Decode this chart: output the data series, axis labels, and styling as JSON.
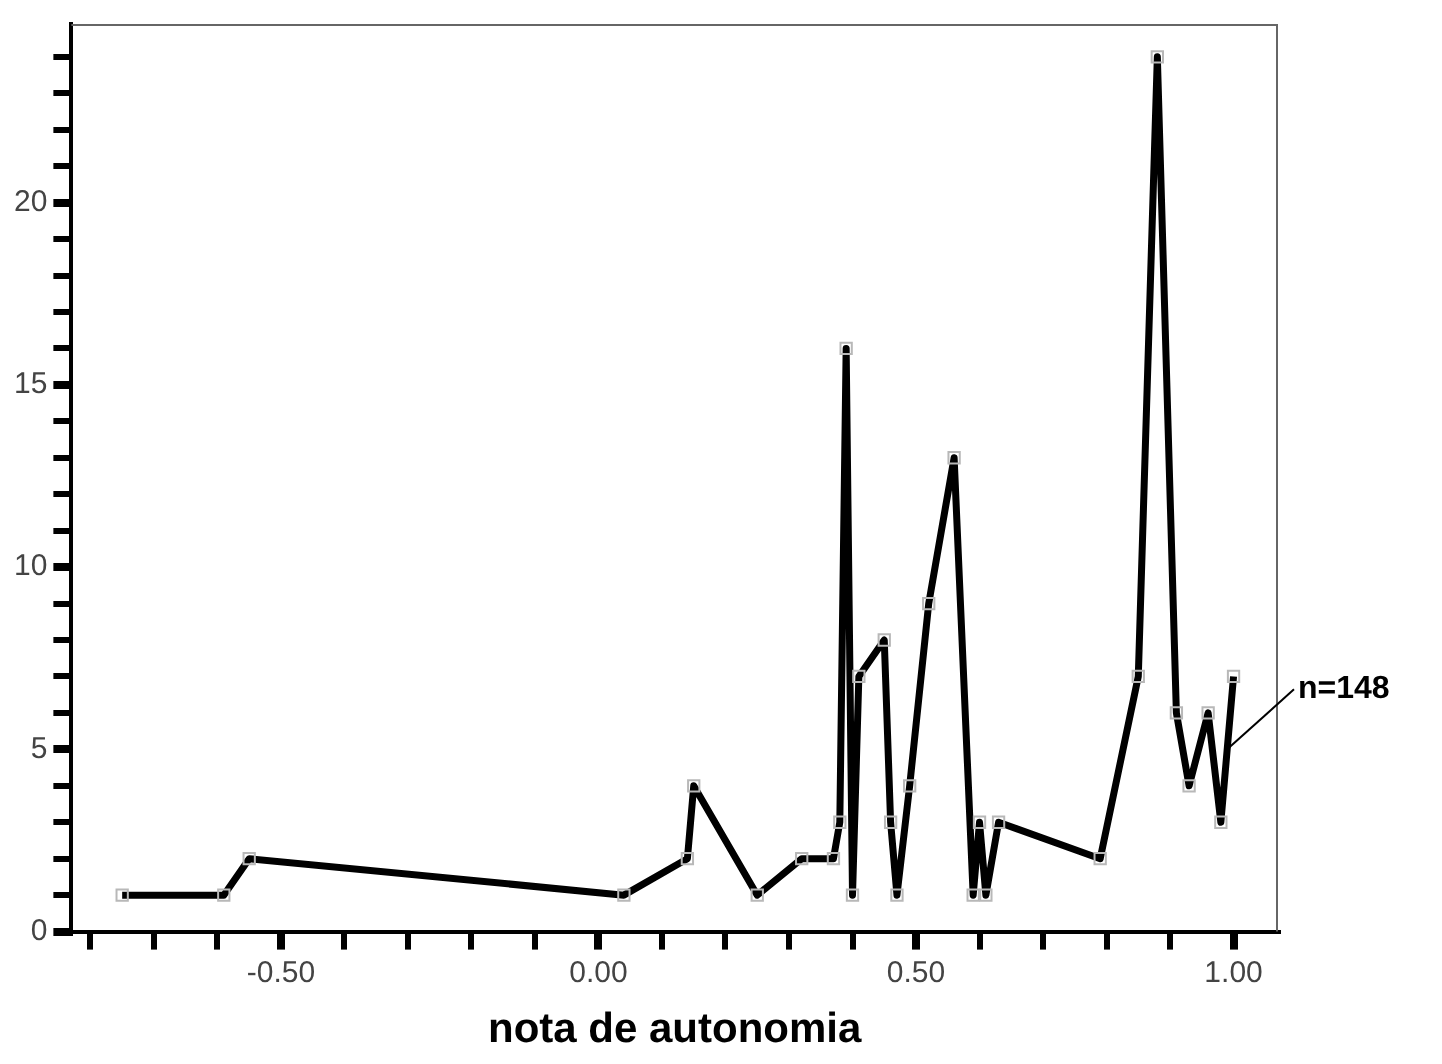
{
  "chart_data": {
    "type": "line",
    "xlabel": "nota de autonomia",
    "x": [
      -0.75,
      -0.59,
      -0.55,
      0.04,
      0.14,
      0.15,
      0.25,
      0.32,
      0.37,
      0.38,
      0.39,
      0.4,
      0.41,
      0.45,
      0.46,
      0.47,
      0.49,
      0.52,
      0.56,
      0.59,
      0.6,
      0.61,
      0.63,
      0.79,
      0.85,
      0.88,
      0.91,
      0.93,
      0.96,
      0.98,
      1.0
    ],
    "series": [
      {
        "color": "#000000",
        "values": [
          1,
          1,
          2,
          1,
          2,
          4,
          1,
          2,
          2,
          3,
          16,
          1,
          7,
          8,
          3,
          1,
          4,
          9,
          13,
          1,
          3,
          1,
          3,
          2,
          7,
          24,
          6,
          4,
          6,
          3,
          7
        ]
      }
    ],
    "xlim": [
      -0.83,
      1.07
    ],
    "ylim": [
      0,
      24.9
    ],
    "xticks": [
      {
        "value": -0.8,
        "label": null
      },
      {
        "value": -0.7,
        "label": null
      },
      {
        "value": -0.6,
        "label": null
      },
      {
        "value": -0.5,
        "label": "-0.50"
      },
      {
        "value": -0.4,
        "label": null
      },
      {
        "value": -0.3,
        "label": null
      },
      {
        "value": -0.2,
        "label": null
      },
      {
        "value": -0.1,
        "label": null
      },
      {
        "value": 0,
        "label": "0.00"
      },
      {
        "value": 0.1,
        "label": null
      },
      {
        "value": 0.2,
        "label": null
      },
      {
        "value": 0.3,
        "label": null
      },
      {
        "value": 0.4,
        "label": null
      },
      {
        "value": 0.5,
        "label": "0.50"
      },
      {
        "value": 0.6,
        "label": null
      },
      {
        "value": 0.7,
        "label": null
      },
      {
        "value": 0.8,
        "label": null
      },
      {
        "value": 0.9,
        "label": null
      },
      {
        "value": 1,
        "label": "1.00"
      }
    ],
    "yticks": [
      0,
      {
        "value": 1,
        "label": null
      },
      {
        "value": 2,
        "label": null
      },
      {
        "value": 3,
        "label": null
      },
      {
        "value": 4,
        "label": null
      },
      5,
      {
        "value": 6,
        "label": null
      },
      {
        "value": 7,
        "label": null
      },
      {
        "value": 8,
        "label": null
      },
      {
        "value": 9,
        "label": null
      },
      10,
      {
        "value": 11,
        "label": null
      },
      {
        "value": 12,
        "label": null
      },
      {
        "value": 13,
        "label": null
      },
      {
        "value": 14,
        "label": null
      },
      15,
      {
        "value": 16,
        "label": null
      },
      {
        "value": 17,
        "label": null
      },
      {
        "value": 18,
        "label": null
      },
      {
        "value": 19,
        "label": null
      },
      20,
      {
        "value": 21,
        "label": null
      },
      {
        "value": 22,
        "label": null
      },
      {
        "value": 23,
        "label": null
      },
      {
        "value": 24,
        "label": null
      }
    ],
    "annotations": [
      {
        "text": "n=148",
        "x": 0.99,
        "y": 5
      }
    ],
    "grid": false,
    "legend": false,
    "marker": "square",
    "line_style": "solid"
  }
}
